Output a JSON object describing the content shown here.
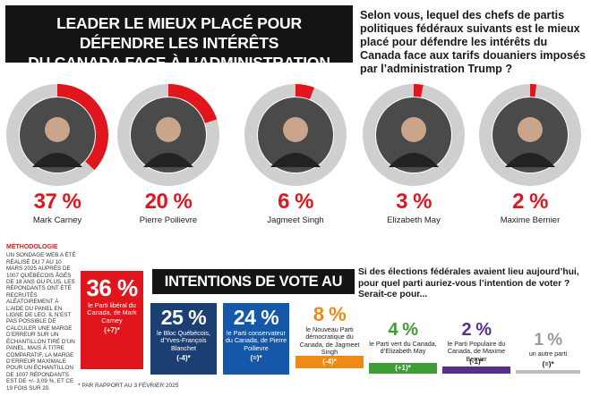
{
  "header": {
    "title_line1": "LEADER LE MIEUX PLACÉ POUR DÉFENDRE LES INTÉRÊTS",
    "title_line2": "DU CANADA FACE À L’ADMINISTRATION TRUMP",
    "question": "Selon vous, lequel des chefs de partis politiques fédéraux suivants est le mieux placé pour défendre les intérêts du Canada face aux tarifs douaniers imposés par l’administration Trump ?"
  },
  "colors": {
    "accent_red": "#e1161d",
    "ring_gray": "#cfcfcf",
    "liberal": "#e1161d",
    "bloc": "#1c3f73",
    "conservative": "#1557a8",
    "npd": "#f08a17",
    "green": "#3d9e35",
    "ppc": "#5a2f8a",
    "other": "#bdbdbd"
  },
  "methodology": {
    "heading": "MÉTHODOLOGIE",
    "text": "UN SONDAGE WEB A ÉTÉ RÉALISÉ DU 7 AU 10 MARS 2025 AUPRÈS DE 1007 QUÉBÉCOIS ÂGÉS DE 18 ANS OU PLUS. LES RÉPONDANTS ONT ÉTÉ RECRUTÉS ALÉATOIREMENT À L’AIDE DU PANEL EN LIGNE DE LEO. IL N’EST PAS POSSIBLE DE CALCULER UNE MARGE D’ERREUR SUR UN ÉCHANTILLON TIRÉ D’UN PANEL, MAIS À TITRE COMPARATIF, LA MARGE D’ERREUR MAXIMALE POUR UN ÉCHANTILLON DE 1007 RÉPONDANTS EST DE +/- 3,09 %, ET CE 19 FOIS SUR 20."
  },
  "footnote": "* PAR RAPPORT AU 3 FÉVRIER 2025",
  "vote_section": {
    "title": "INTENTIONS DE VOTE AU FÉDÉRAL",
    "question": "Si des élections fédérales avaient lieu aujourd’hui, pour quel parti auriez-vous l’intention de voter ? Serait-ce pour..."
  },
  "chart_data": [
    {
      "type": "pie",
      "title": "LEADER LE MIEUX PLACÉ POUR DÉFENDRE LES INTÉRÊTS DU CANADA FACE À L’ADMINISTRATION TRUMP",
      "categories": [
        "Mark Carney",
        "Pierre Poilievre",
        "Jagmeet Singh",
        "Elizabeth May",
        "Maxime Bernier"
      ],
      "values": [
        37,
        20,
        6,
        3,
        2
      ],
      "labels": [
        "37 %",
        "20 %",
        "6 %",
        "3 %",
        "2 %"
      ],
      "unit": "%"
    },
    {
      "type": "bar",
      "title": "INTENTIONS DE VOTE AU FÉDÉRAL",
      "categories": [
        "le Parti libéral du Canada, de Mark Carney",
        "le Bloc Québécois, d’Yves-François Blanchet",
        "le Parti conservateur du Canada, de Pierre Poilievre",
        "le Nouveau Parti démocratique du Canada, de Jagmeet Singh",
        "le Parti vert du Canada, d’Elizabeth May",
        "le Parti Populaire du Canada, de Maxime Bernier",
        "un autre parti"
      ],
      "values": [
        36,
        25,
        24,
        8,
        4,
        2,
        1
      ],
      "labels": [
        "36 %",
        "25 %",
        "24 %",
        "8 %",
        "4 %",
        "2 %",
        "1 %"
      ],
      "changes": [
        "(+7)*",
        "(-4)*",
        "(=)*",
        "(-4)*",
        "(+1)*",
        "(-1)*",
        "(=)*"
      ],
      "unit": "%"
    }
  ]
}
